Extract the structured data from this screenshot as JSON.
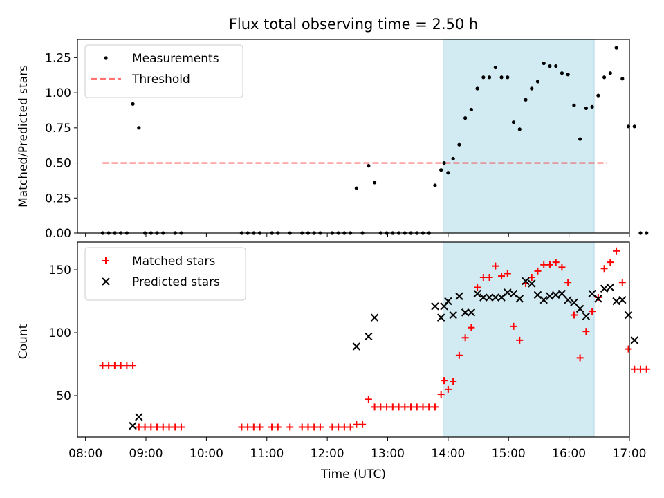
{
  "chart_data": {
    "type": "scatter",
    "title": "Flux total observing time = 2.50 h",
    "xlabel": "Time (UTC)",
    "x_ticks": [
      "08:00",
      "09:00",
      "10:00",
      "11:00",
      "12:00",
      "13:00",
      "14:00",
      "15:00",
      "16:00",
      "17:00"
    ],
    "xlim": [
      "07:52",
      "17:00"
    ],
    "highlight_span": [
      "13:55",
      "16:25"
    ],
    "colors": {
      "highlight": "#add8e6",
      "threshold": "#ff0000",
      "matched": "#ff0000",
      "predicted": "#000000",
      "measurements": "#000000"
    },
    "panels": [
      {
        "ylabel": "Matched/Predicted stars",
        "ylim": [
          0,
          1.38
        ],
        "yticks": [
          "0.00",
          "0.25",
          "0.50",
          "0.75",
          "1.00",
          "1.25"
        ],
        "legend": "top-left",
        "threshold": {
          "name": "Threshold",
          "value": 0.5,
          "x_range": [
            "08:17",
            "16:38"
          ]
        },
        "series": [
          {
            "name": "Measurements",
            "marker": "dot",
            "points": [
              [
                "08:17",
                0
              ],
              [
                "08:23",
                0
              ],
              [
                "08:29",
                0
              ],
              [
                "08:35",
                0
              ],
              [
                "08:41",
                0
              ],
              [
                "08:47",
                0.92
              ],
              [
                "08:53",
                0.75
              ],
              [
                "08:59",
                0
              ],
              [
                "09:05",
                0
              ],
              [
                "09:11",
                0
              ],
              [
                "09:17",
                0
              ],
              [
                "09:29",
                0
              ],
              [
                "09:35",
                0
              ],
              [
                "10:35",
                0
              ],
              [
                "10:41",
                0
              ],
              [
                "10:47",
                0
              ],
              [
                "10:53",
                0
              ],
              [
                "11:05",
                0
              ],
              [
                "11:11",
                0
              ],
              [
                "11:23",
                0
              ],
              [
                "11:35",
                0
              ],
              [
                "11:41",
                0
              ],
              [
                "11:47",
                0
              ],
              [
                "11:53",
                0
              ],
              [
                "12:05",
                0
              ],
              [
                "12:11",
                0
              ],
              [
                "12:17",
                0
              ],
              [
                "12:23",
                0
              ],
              [
                "12:29",
                0.32
              ],
              [
                "12:35",
                0
              ],
              [
                "12:41",
                0.48
              ],
              [
                "12:47",
                0.36
              ],
              [
                "12:53",
                0
              ],
              [
                "12:59",
                0
              ],
              [
                "13:05",
                0
              ],
              [
                "13:11",
                0
              ],
              [
                "13:17",
                0
              ],
              [
                "13:23",
                0
              ],
              [
                "13:29",
                0
              ],
              [
                "13:35",
                0
              ],
              [
                "13:41",
                0
              ],
              [
                "13:47",
                0.34
              ],
              [
                "13:53",
                0.45
              ],
              [
                "13:56",
                0.5
              ],
              [
                "14:00",
                0.43
              ],
              [
                "14:05",
                0.53
              ],
              [
                "14:11",
                0.63
              ],
              [
                "14:17",
                0.82
              ],
              [
                "14:23",
                0.88
              ],
              [
                "14:29",
                1.03
              ],
              [
                "14:35",
                1.11
              ],
              [
                "14:41",
                1.11
              ],
              [
                "14:47",
                1.18
              ],
              [
                "14:53",
                1.11
              ],
              [
                "14:59",
                1.11
              ],
              [
                "15:05",
                0.79
              ],
              [
                "15:11",
                0.74
              ],
              [
                "15:17",
                0.95
              ],
              [
                "15:23",
                1.03
              ],
              [
                "15:29",
                1.08
              ],
              [
                "15:35",
                1.21
              ],
              [
                "15:41",
                1.19
              ],
              [
                "15:47",
                1.19
              ],
              [
                "15:53",
                1.14
              ],
              [
                "15:59",
                1.13
              ],
              [
                "16:05",
                0.91
              ],
              [
                "16:11",
                0.67
              ],
              [
                "16:17",
                0.89
              ],
              [
                "16:23",
                0.9
              ],
              [
                "16:29",
                0.98
              ],
              [
                "16:35",
                1.11
              ],
              [
                "16:41",
                1.14
              ],
              [
                "16:47",
                1.32
              ],
              [
                "16:53",
                1.1
              ],
              [
                "16:59",
                0.76
              ],
              [
                "17:05",
                0.76
              ],
              [
                "17:11",
                0
              ],
              [
                "17:17",
                0
              ]
            ]
          }
        ]
      },
      {
        "ylabel": "Count",
        "ylim": [
          17,
          172
        ],
        "yticks": [
          "50",
          "100",
          "150"
        ],
        "legend": "top-left",
        "series": [
          {
            "name": "Matched stars",
            "marker": "plus",
            "points": [
              [
                "08:17",
                74
              ],
              [
                "08:23",
                74
              ],
              [
                "08:29",
                74
              ],
              [
                "08:35",
                74
              ],
              [
                "08:41",
                74
              ],
              [
                "08:47",
                74
              ],
              [
                "08:53",
                25
              ],
              [
                "08:59",
                25
              ],
              [
                "09:05",
                25
              ],
              [
                "09:11",
                25
              ],
              [
                "09:17",
                25
              ],
              [
                "09:23",
                25
              ],
              [
                "09:29",
                25
              ],
              [
                "09:35",
                25
              ],
              [
                "10:35",
                25
              ],
              [
                "10:41",
                25
              ],
              [
                "10:47",
                25
              ],
              [
                "10:53",
                25
              ],
              [
                "11:05",
                25
              ],
              [
                "11:11",
                25
              ],
              [
                "11:23",
                25
              ],
              [
                "11:35",
                25
              ],
              [
                "11:41",
                25
              ],
              [
                "11:47",
                25
              ],
              [
                "11:53",
                25
              ],
              [
                "12:05",
                25
              ],
              [
                "12:11",
                25
              ],
              [
                "12:17",
                25
              ],
              [
                "12:23",
                25
              ],
              [
                "12:29",
                27
              ],
              [
                "12:35",
                27
              ],
              [
                "12:41",
                47
              ],
              [
                "12:47",
                41
              ],
              [
                "12:53",
                41
              ],
              [
                "12:59",
                41
              ],
              [
                "13:05",
                41
              ],
              [
                "13:11",
                41
              ],
              [
                "13:17",
                41
              ],
              [
                "13:23",
                41
              ],
              [
                "13:29",
                41
              ],
              [
                "13:35",
                41
              ],
              [
                "13:41",
                41
              ],
              [
                "13:47",
                41
              ],
              [
                "13:53",
                51
              ],
              [
                "13:56",
                62
              ],
              [
                "14:00",
                55
              ],
              [
                "14:05",
                61
              ],
              [
                "14:11",
                82
              ],
              [
                "14:17",
                96
              ],
              [
                "14:23",
                104
              ],
              [
                "14:29",
                136
              ],
              [
                "14:35",
                144
              ],
              [
                "14:41",
                144
              ],
              [
                "14:47",
                153
              ],
              [
                "14:53",
                145
              ],
              [
                "14:59",
                147
              ],
              [
                "15:05",
                105
              ],
              [
                "15:11",
                94
              ],
              [
                "15:17",
                139
              ],
              [
                "15:23",
                144
              ],
              [
                "15:29",
                149
              ],
              [
                "15:35",
                154
              ],
              [
                "15:41",
                154
              ],
              [
                "15:47",
                156
              ],
              [
                "15:53",
                152
              ],
              [
                "15:59",
                140
              ],
              [
                "16:05",
                114
              ],
              [
                "16:11",
                80
              ],
              [
                "16:17",
                101
              ],
              [
                "16:23",
                117
              ],
              [
                "16:29",
                128
              ],
              [
                "16:35",
                151
              ],
              [
                "16:41",
                156
              ],
              [
                "16:47",
                165
              ],
              [
                "16:53",
                140
              ],
              [
                "16:59",
                87
              ],
              [
                "17:05",
                71
              ],
              [
                "17:11",
                71
              ],
              [
                "17:17",
                71
              ]
            ]
          },
          {
            "name": "Predicted stars",
            "marker": "x",
            "points": [
              [
                "08:47",
                26
              ],
              [
                "08:53",
                33
              ],
              [
                "12:29",
                89
              ],
              [
                "12:41",
                97
              ],
              [
                "12:47",
                112
              ],
              [
                "13:47",
                121
              ],
              [
                "13:53",
                112
              ],
              [
                "13:56",
                121
              ],
              [
                "14:00",
                125
              ],
              [
                "14:05",
                114
              ],
              [
                "14:11",
                129
              ],
              [
                "14:17",
                116
              ],
              [
                "14:23",
                116
              ],
              [
                "14:29",
                131
              ],
              [
                "14:35",
                128
              ],
              [
                "14:41",
                128
              ],
              [
                "14:47",
                128
              ],
              [
                "14:53",
                128
              ],
              [
                "14:59",
                132
              ],
              [
                "15:05",
                131
              ],
              [
                "15:11",
                127
              ],
              [
                "15:17",
                141
              ],
              [
                "15:23",
                139
              ],
              [
                "15:29",
                130
              ],
              [
                "15:35",
                126
              ],
              [
                "15:41",
                129
              ],
              [
                "15:47",
                130
              ],
              [
                "15:53",
                131
              ],
              [
                "15:59",
                126
              ],
              [
                "16:05",
                124
              ],
              [
                "16:11",
                119
              ],
              [
                "16:17",
                113
              ],
              [
                "16:23",
                131
              ],
              [
                "16:29",
                127
              ],
              [
                "16:35",
                135
              ],
              [
                "16:41",
                136
              ],
              [
                "16:47",
                125
              ],
              [
                "16:53",
                126
              ],
              [
                "16:59",
                114
              ],
              [
                "17:05",
                94
              ]
            ]
          }
        ]
      }
    ]
  }
}
